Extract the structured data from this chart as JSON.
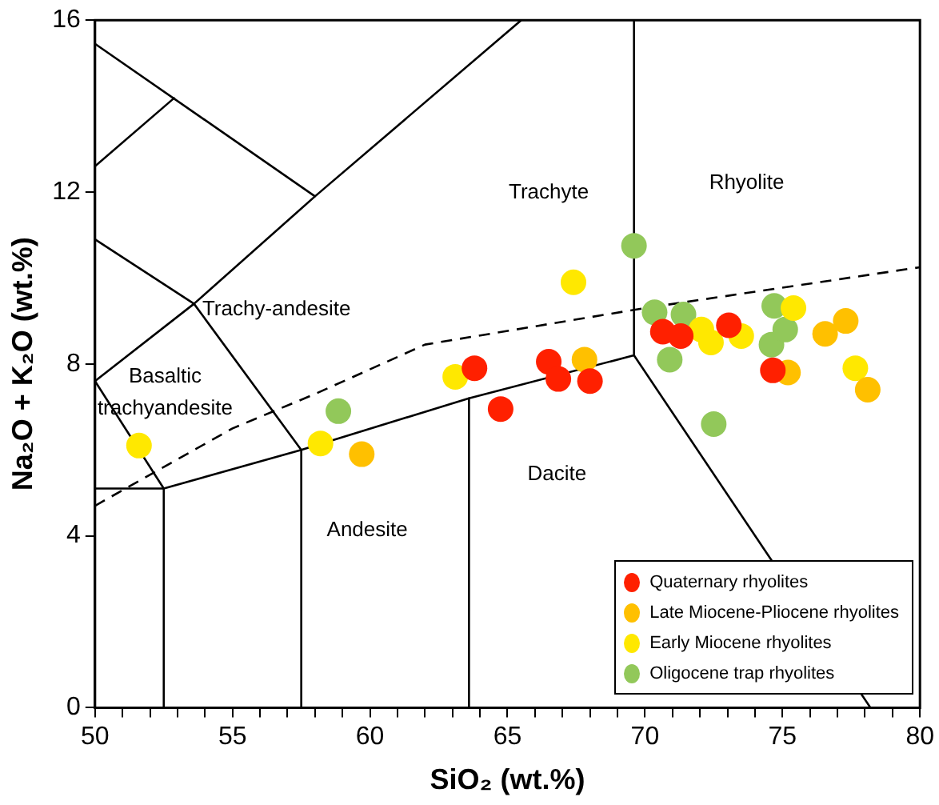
{
  "chart_data": {
    "type": "scatter",
    "xlabel": "SiO₂ (wt.%)",
    "ylabel": "Na₂O + K₂O (wt.%)",
    "xlim": [
      50,
      80
    ],
    "ylim": [
      0,
      16
    ],
    "xticks": [
      50,
      {
        "value": 51,
        "label": null
      },
      {
        "value": 52,
        "label": null
      },
      {
        "value": 53,
        "label": null
      },
      {
        "value": 54,
        "label": null
      },
      55,
      {
        "value": 56,
        "label": null
      },
      {
        "value": 57,
        "label": null
      },
      {
        "value": 58,
        "label": null
      },
      {
        "value": 59,
        "label": null
      },
      60,
      {
        "value": 61,
        "label": null
      },
      {
        "value": 62,
        "label": null
      },
      {
        "value": 63,
        "label": null
      },
      {
        "value": 64,
        "label": null
      },
      65,
      {
        "value": 66,
        "label": null
      },
      {
        "value": 67,
        "label": null
      },
      {
        "value": 68,
        "label": null
      },
      {
        "value": 69,
        "label": null
      },
      70,
      {
        "value": 71,
        "label": null
      },
      {
        "value": 72,
        "label": null
      },
      {
        "value": 73,
        "label": null
      },
      {
        "value": 74,
        "label": null
      },
      75,
      {
        "value": 76,
        "label": null
      },
      {
        "value": 77,
        "label": null
      },
      {
        "value": 78,
        "label": null
      },
      {
        "value": 79,
        "label": null
      },
      80
    ],
    "yticks": [
      0,
      4,
      8,
      12,
      16
    ],
    "legend": "bottom right",
    "grid": false,
    "marker": "circle",
    "series": [
      {
        "type": "line",
        "marker": "none",
        "color": "#000000",
        "line_style": "solid",
        "x": [
          50,
          58,
          65.5
        ],
        "values": [
          15.45,
          11.9,
          16
        ]
      },
      {
        "type": "line",
        "marker": "none",
        "color": "#000000",
        "line_style": "solid",
        "x": [
          50,
          52.9
        ],
        "values": [
          12.6,
          14.2
        ]
      },
      {
        "type": "line",
        "marker": "none",
        "color": "#000000",
        "line_style": "solid",
        "x": [
          50,
          53.6,
          58
        ],
        "values": [
          10.9,
          9.4,
          11.9
        ]
      },
      {
        "type": "line",
        "marker": "none",
        "color": "#000000",
        "line_style": "solid",
        "x": [
          50,
          53.6,
          57.5
        ],
        "values": [
          7.6,
          9.4,
          6
        ]
      },
      {
        "type": "line",
        "marker": "none",
        "color": "#000000",
        "line_style": "solid",
        "x": [
          50,
          52.5,
          57.5,
          63.6,
          69.6,
          69.6
        ],
        "values": [
          7.6,
          5.1,
          6,
          7.2,
          8.2,
          16
        ]
      },
      {
        "type": "line",
        "marker": "none",
        "color": "#000000",
        "line_style": "solid",
        "x": [
          50,
          52.5,
          52.5
        ],
        "values": [
          5.1,
          5.1,
          0
        ]
      },
      {
        "type": "line",
        "marker": "none",
        "color": "#000000",
        "line_style": "solid",
        "x": [
          57.5,
          57.5
        ],
        "values": [
          6,
          0
        ]
      },
      {
        "type": "line",
        "marker": "none",
        "color": "#000000",
        "line_style": "solid",
        "x": [
          63.6,
          63.6
        ],
        "values": [
          7.2,
          0
        ]
      },
      {
        "type": "line",
        "marker": "none",
        "color": "#000000",
        "line_style": "solid",
        "x": [
          69.6,
          78.2
        ],
        "values": [
          8.2,
          0
        ]
      },
      {
        "type": "line",
        "marker": "none",
        "color": "#000000",
        "line_style": "dashed",
        "x": [
          50,
          52.5,
          55,
          58,
          62,
          70,
          80
        ],
        "values": [
          4.7,
          5.6,
          6.5,
          7.3,
          8.45,
          9.3,
          10.25
        ]
      },
      {
        "name": "Quaternary rhyolites",
        "color": "#ff2000",
        "x": [
          63.8,
          64.75,
          66.5,
          66.85,
          68.0,
          70.65,
          71.3,
          73.05,
          74.65
        ],
        "values": [
          7.9,
          6.95,
          8.05,
          7.65,
          7.6,
          8.75,
          8.65,
          8.9,
          7.85
        ]
      },
      {
        "name": "Late Miocene-Pliocene rhyolites",
        "color": "#ffc000",
        "x": [
          59.7,
          67.8,
          75.2,
          76.55,
          77.3,
          78.1
        ],
        "values": [
          5.9,
          8.1,
          7.8,
          8.7,
          9.0,
          7.4
        ]
      },
      {
        "name": "Early Miocene rhyolites",
        "color": "#ffe800",
        "x": [
          51.6,
          58.2,
          63.1,
          67.4,
          72.05,
          72.4,
          73.5,
          75.4,
          77.65
        ],
        "values": [
          6.1,
          6.15,
          7.7,
          9.9,
          8.8,
          8.5,
          8.65,
          9.3,
          7.9
        ]
      },
      {
        "name": "Oligocene trap rhyolites",
        "color": "#92c85a",
        "x": [
          58.85,
          69.6,
          70.35,
          71.4,
          70.9,
          72.5,
          74.7,
          74.6,
          75.1
        ],
        "values": [
          6.9,
          10.75,
          9.2,
          9.15,
          8.1,
          6.6,
          9.35,
          8.45,
          8.8
        ]
      }
    ],
    "annotations": [
      "Trachyte",
      "Rhyolite",
      "Trachy-andesite",
      "Basaltic trachyandesite",
      "Dacite",
      "Andesite"
    ]
  }
}
